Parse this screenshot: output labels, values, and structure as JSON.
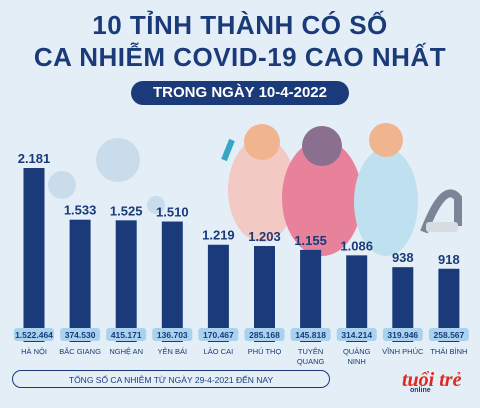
{
  "title_line1": "10 TỈNH THÀNH CÓ SỐ",
  "title_line2": "CA NHIỄM COVID-19 CAO NHẤT",
  "subtitle": "TRONG NGÀY 10-4-2022",
  "footnote": "TỔNG SỐ CA NHIỄM TỪ NGÀY 29-4-2021 ĐẾN NAY",
  "logo": "tuổi trẻ",
  "logo_sub": "online",
  "colors": {
    "bar": "#1b3a7a",
    "title": "#1b3a7a",
    "background": "#e3eef7",
    "total_pill": "#a9d2ee",
    "logo": "#e1261c"
  },
  "chart_data": {
    "type": "bar",
    "title": "10 TỈNH THÀNH CÓ SỐ CA NHIỄM COVID-19 CAO NHẤT",
    "subtitle": "TRONG NGÀY 10-4-2022",
    "categories": [
      [
        "HÀ NỘI"
      ],
      [
        "BẮC GIANG"
      ],
      [
        "NGHỆ AN"
      ],
      [
        "YÊN BÁI"
      ],
      [
        "LÀO CAI"
      ],
      [
        "PHÚ THỌ"
      ],
      [
        "TUYÊN",
        "QUANG"
      ],
      [
        "QUẢNG",
        "NINH"
      ],
      [
        "VĨNH PHÚC"
      ],
      [
        "THÁI BÌNH"
      ]
    ],
    "series": [
      {
        "values": [
          2181,
          1533,
          1525,
          1510,
          1219,
          1203,
          1155,
          1086,
          938,
          918
        ],
        "labels": [
          "2.181",
          "1.533",
          "1.525",
          "1.510",
          "1.219",
          "1.203",
          "1.155",
          "1.086",
          "938",
          "918"
        ]
      },
      {
        "values": [
          1522464,
          374530,
          415171,
          136703,
          170467,
          285168,
          145818,
          314214,
          319946,
          258567
        ],
        "labels": [
          "1.522.464",
          "374.530",
          "415.171",
          "136.703",
          "170.467",
          "285.168",
          "145.818",
          "314.214",
          "319.946",
          "258.567"
        ]
      }
    ],
    "ylim": [
      0,
      2181
    ],
    "grid": false,
    "legend": "none"
  }
}
